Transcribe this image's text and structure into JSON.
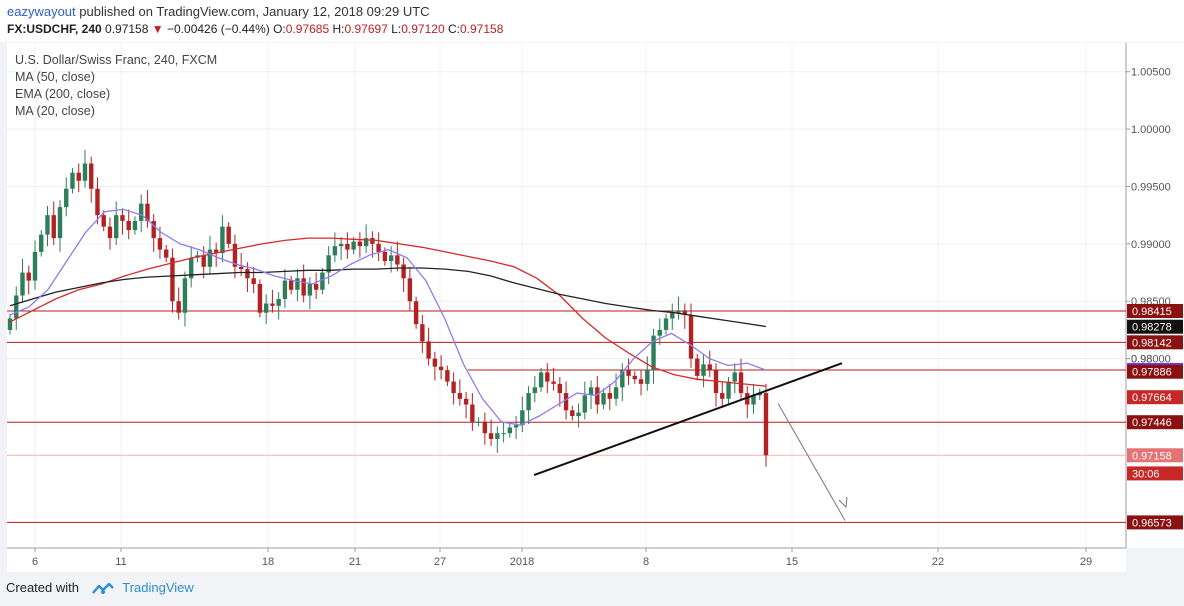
{
  "header": {
    "user": "eazywayout",
    "published": "published on TradingView.com, January 12, 2018 09:29 UTC",
    "symbol": "FX:USDCHF, 240",
    "last": "0.97158",
    "change": "−0.00426 (−0.44%)",
    "o_label": "O:",
    "o": "0.97685",
    "h_label": "H:",
    "h": "0.97697",
    "l_label": "L:",
    "l": "0.97120",
    "c_label": "C:",
    "c": "0.97158"
  },
  "legend": {
    "title": "U.S. Dollar/Swiss Franc, 240, FXCM",
    "ma50": "MA (50, close)",
    "ema200": "EMA (200, close)",
    "ma20": "MA (20, close)"
  },
  "footer": {
    "created_with": "Created with",
    "brand": "TradingView"
  },
  "colors": {
    "up": "#2e7d5b",
    "down": "#b22222",
    "ma50": "#d62a2a",
    "ema200": "#222222",
    "ma20": "#8f7bf0",
    "hline": "#b71c1c"
  },
  "chart_data": {
    "type": "candlestick",
    "title": "U.S. Dollar/Swiss Franc, 240, FXCM",
    "ylim": [
      0.9635,
      1.0075
    ],
    "y_ticks": [
      "1.00500",
      "1.00000",
      "0.99500",
      "0.99000",
      "0.98500",
      "0.98000",
      "0.98"
    ],
    "x_ticks": [
      "6",
      "11",
      "18",
      "21",
      "27",
      "2018",
      "8",
      "15",
      "22",
      "29"
    ],
    "horizontal_levels": [
      0.98415,
      0.98142,
      0.97901,
      0.97446,
      0.97158,
      0.96573
    ],
    "price_labels": [
      {
        "value": "0.98415",
        "y": 0.98415,
        "bg": "#8b1010"
      },
      {
        "value": "0.98278",
        "y": 0.98278,
        "bg": "#111111"
      },
      {
        "value": "0.98142",
        "y": 0.98142,
        "bg": "#8b1010"
      },
      {
        "value": "0.97901",
        "y": 0.97901,
        "bg": "#6b3df0"
      },
      {
        "value": "0.97886",
        "y": 0.97886,
        "bg": "#8b1010"
      },
      {
        "value": "0.97664",
        "y": 0.97664,
        "bg": "#c62828"
      },
      {
        "value": "0.97446",
        "y": 0.97446,
        "bg": "#8b1010"
      },
      {
        "value": "0.97158",
        "y": 0.97158,
        "bg": "#e57373"
      },
      {
        "value": "30:06",
        "y": 0.97,
        "bg": "#c62828"
      },
      {
        "value": "0.96573",
        "y": 0.96573,
        "bg": "#8b1010"
      }
    ],
    "closes": [
      0.9835,
      0.9855,
      0.9875,
      0.9868,
      0.9893,
      0.9908,
      0.9925,
      0.9905,
      0.9932,
      0.9948,
      0.9962,
      0.9955,
      0.997,
      0.9948,
      0.9925,
      0.9915,
      0.9905,
      0.9925,
      0.992,
      0.9912,
      0.992,
      0.9935,
      0.992,
      0.9905,
      0.9895,
      0.9888,
      0.985,
      0.984,
      0.987,
      0.9888,
      0.989,
      0.988,
      0.9895,
      0.9892,
      0.9915,
      0.99,
      0.988,
      0.9878,
      0.987,
      0.9865,
      0.984,
      0.9848,
      0.9846,
      0.9852,
      0.9868,
      0.986,
      0.987,
      0.9855,
      0.9865,
      0.986,
      0.9875,
      0.989,
      0.9898,
      0.99,
      0.9895,
      0.9902,
      0.9898,
      0.9905,
      0.99,
      0.9893,
      0.9885,
      0.989,
      0.9882,
      0.987,
      0.985,
      0.983,
      0.9815,
      0.98,
      0.9793,
      0.979,
      0.978,
      0.977,
      0.9765,
      0.976,
      0.9745,
      0.9745,
      0.9735,
      0.973,
      0.9735,
      0.9735,
      0.974,
      0.9742,
      0.9755,
      0.977,
      0.9775,
      0.9788,
      0.978,
      0.9778,
      0.977,
      0.9755,
      0.975,
      0.9753,
      0.9768,
      0.9775,
      0.976,
      0.977,
      0.9765,
      0.9775,
      0.979,
      0.9785,
      0.9782,
      0.9778,
      0.979,
      0.982,
      0.9825,
      0.9835,
      0.984,
      0.9842,
      0.9838,
      0.98,
      0.9785,
      0.9795,
      0.979,
      0.977,
      0.9765,
      0.978,
      0.9788,
      0.977,
      0.976,
      0.9768,
      0.977,
      0.97158
    ],
    "series": [
      {
        "name": "MA (50, close)",
        "values": [
          0.9832,
          0.9842,
          0.9852,
          0.986,
          0.9865,
          0.9872,
          0.9878,
          0.9883,
          0.9888,
          0.9892,
          0.9896,
          0.99,
          0.9903,
          0.9905,
          0.9905,
          0.9904,
          0.9903,
          0.99,
          0.9897,
          0.9893,
          0.9889,
          0.9885,
          0.988,
          0.987,
          0.9855,
          0.9835,
          0.9818,
          0.9805,
          0.9793,
          0.9786,
          0.9782,
          0.978,
          0.9778,
          0.9776
        ]
      },
      {
        "name": "EMA (200, close)",
        "values": [
          0.9846,
          0.9852,
          0.9858,
          0.9862,
          0.9866,
          0.9869,
          0.9871,
          0.9872,
          0.9873,
          0.9874,
          0.9875,
          0.9875,
          0.9876,
          0.9877,
          0.9877,
          0.9878,
          0.9878,
          0.9879,
          0.9879,
          0.9878,
          0.9876,
          0.9872,
          0.9866,
          0.9861,
          0.9856,
          0.9852,
          0.9848,
          0.9845,
          0.9842,
          0.984,
          0.9837,
          0.9834,
          0.9831,
          0.9828
        ]
      },
      {
        "name": "MA (20, close)",
        "values": [
          0.9838,
          0.9845,
          0.986,
          0.9885,
          0.991,
          0.9928,
          0.993,
          0.9925,
          0.991,
          0.99,
          0.9895,
          0.9888,
          0.9882,
          0.9878,
          0.9872,
          0.9868,
          0.9865,
          0.9872,
          0.9882,
          0.989,
          0.9895,
          0.9888,
          0.9868,
          0.9835,
          0.9795,
          0.9765,
          0.9745,
          0.9742,
          0.975,
          0.976,
          0.977,
          0.9768,
          0.978,
          0.98,
          0.9815,
          0.9822,
          0.9812,
          0.98,
          0.9794,
          0.9796,
          0.979
        ]
      }
    ]
  }
}
